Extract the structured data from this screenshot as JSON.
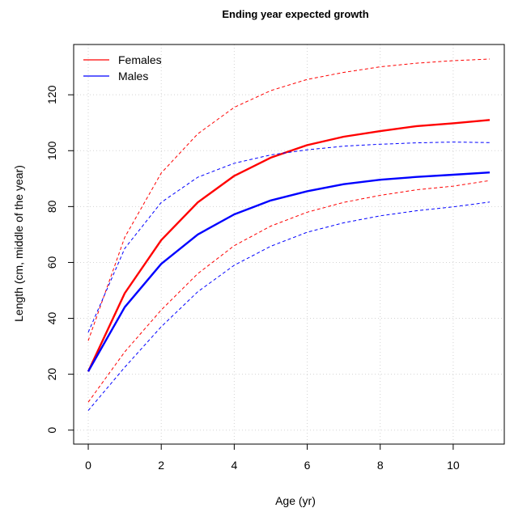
{
  "chart_data": {
    "type": "line",
    "title": "Ending year expected growth",
    "xlabel": "Age (yr)",
    "ylabel": "Length (cm, middle of the year)",
    "xlim": [
      -0.4,
      11.4
    ],
    "ylim": [
      -5,
      138
    ],
    "xticks": [
      0,
      2,
      4,
      6,
      8,
      10
    ],
    "yticks": [
      0,
      20,
      40,
      60,
      80,
      100,
      120
    ],
    "grid": true,
    "legend": "top-left",
    "x": [
      0,
      1,
      2,
      3,
      4,
      5,
      6,
      7,
      8,
      9,
      10,
      11
    ],
    "series": [
      {
        "name": "Females",
        "color": "#ff0000",
        "style": "solid",
        "width": 2.4,
        "legend": true,
        "values": [
          21,
          49,
          68,
          81.5,
          91,
          97.5,
          102,
          105,
          107,
          108.8,
          109.8,
          111
        ]
      },
      {
        "name": "",
        "color": "#ff0000",
        "style": "dashed",
        "width": 1,
        "legend": false,
        "values": [
          32,
          69,
          92,
          106,
          115.5,
          121.5,
          125.5,
          128,
          130,
          131.3,
          132.2,
          132.8
        ]
      },
      {
        "name": "",
        "color": "#ff0000",
        "style": "dashed",
        "width": 1,
        "legend": false,
        "values": [
          10,
          28,
          43,
          56,
          66,
          73,
          78,
          81.5,
          84,
          86,
          87.3,
          89.3
        ]
      },
      {
        "name": "Males",
        "color": "#0000ff",
        "style": "solid",
        "width": 2.4,
        "legend": true,
        "values": [
          21,
          44,
          59.5,
          70,
          77.2,
          82.2,
          85.5,
          88,
          89.6,
          90.6,
          91.4,
          92.2
        ]
      },
      {
        "name": "",
        "color": "#0000ff",
        "style": "dashed",
        "width": 1,
        "legend": false,
        "values": [
          35,
          65,
          81.5,
          90.5,
          95.5,
          98.5,
          100.3,
          101.6,
          102.3,
          102.8,
          103.1,
          102.9
        ]
      },
      {
        "name": "",
        "color": "#0000ff",
        "style": "dashed",
        "width": 1,
        "legend": false,
        "values": [
          7,
          22.5,
          37,
          49.5,
          59,
          65.8,
          70.8,
          74.2,
          76.7,
          78.5,
          79.9,
          81.6
        ]
      }
    ]
  }
}
